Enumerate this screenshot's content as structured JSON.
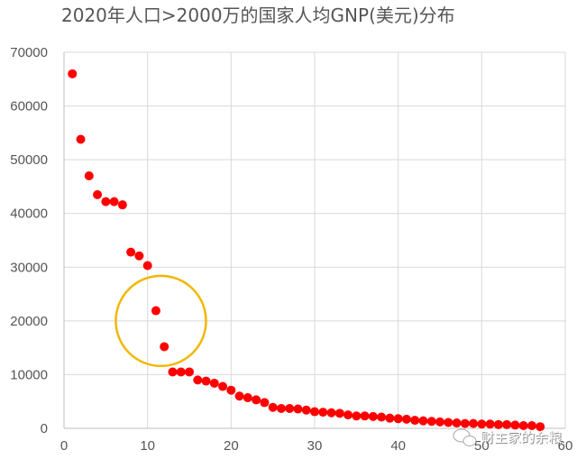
{
  "chart_data": {
    "type": "scatter",
    "title": "2020年人口>2000万的国家人均GNP(美元)分布",
    "xlabel": "",
    "ylabel": "",
    "xlim": [
      0,
      60
    ],
    "ylim": [
      0,
      70000
    ],
    "x_ticks": [
      0,
      10,
      20,
      30,
      40,
      50,
      60
    ],
    "y_ticks": [
      0,
      10000,
      20000,
      30000,
      40000,
      50000,
      60000,
      70000
    ],
    "grid": true,
    "legend": "none",
    "marker_color": "#ff0000",
    "series": [
      {
        "x": [
          1,
          2,
          3,
          4,
          5,
          6,
          7,
          8,
          9,
          10,
          11,
          12,
          13,
          14,
          15,
          16,
          17,
          18,
          19,
          20,
          21,
          22,
          23,
          24,
          25,
          26,
          27,
          28,
          29,
          30,
          31,
          32,
          33,
          34,
          35,
          36,
          37,
          38,
          39,
          40,
          41,
          42,
          43,
          44,
          45,
          46,
          47,
          48,
          49,
          50,
          51,
          52,
          53,
          54,
          55,
          56,
          57
        ],
        "y": [
          66000,
          53800,
          47000,
          43500,
          42200,
          42200,
          41600,
          32800,
          32100,
          30300,
          21900,
          15200,
          10500,
          10500,
          10500,
          9000,
          8800,
          8400,
          7800,
          7100,
          6000,
          5700,
          5300,
          4800,
          3900,
          3700,
          3700,
          3600,
          3400,
          3100,
          3000,
          2900,
          2800,
          2500,
          2300,
          2300,
          2200,
          2100,
          1900,
          1800,
          1700,
          1500,
          1400,
          1300,
          1200,
          1100,
          1000,
          900,
          900,
          800,
          800,
          700,
          700,
          600,
          500,
          500,
          300
        ]
      }
    ],
    "annotation": {
      "shape": "circle",
      "color": "#f2b705",
      "center": [
        11.6,
        20000
      ],
      "radius_x_units": 5.4
    },
    "watermark": "财主家的余粮"
  }
}
